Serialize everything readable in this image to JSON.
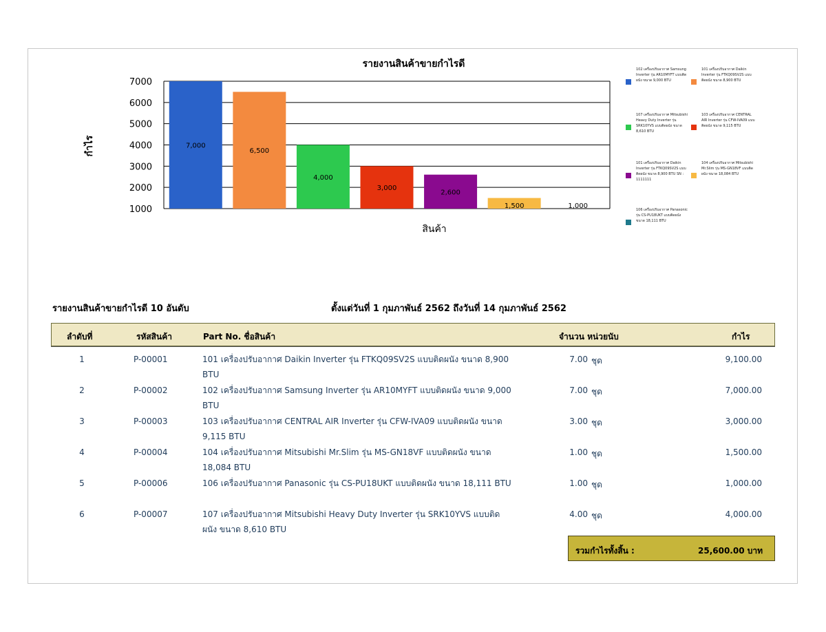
{
  "chart_data": {
    "type": "bar",
    "title": "รายงานสินค้าขายกำไรดี",
    "xlabel": "สินค้า",
    "ylabel": "กำไร",
    "ylim": [
      1000,
      7000
    ],
    "yticks": [
      "7000",
      "6000",
      "5000",
      "4000",
      "3000",
      "2000",
      "1000"
    ],
    "grid": true,
    "legend_position": "right",
    "series": [
      {
        "name": "102 เครื่องปรับอากาศ Samsung Inverter รุ่น AR10MYFT แบบติดผนัง ขนาด 9,000 BTU",
        "value": 7000,
        "label": "7,000",
        "color": "#2a62c9"
      },
      {
        "name": "101 เครื่องปรับอากาศ Daikin Inverter รุ่น FTKQ09SV2S แบบติดผนัง ขนาด 8,900 BTU",
        "value": 6500,
        "label": "6,500",
        "color": "#f38a3f"
      },
      {
        "name": "107 เครื่องปรับอากาศ Mitsubishi Heavy Duty Inverter รุ่น SRK10YVS แบบติดผนัง ขนาด 8,610 BTU",
        "value": 4000,
        "label": "4,000",
        "color": "#2dc94f"
      },
      {
        "name": "103 เครื่องปรับอากาศ CENTRAL AIR Inverter รุ่น CFW-IVA09 แบบติดผนัง ขนาด 9,115 BTU",
        "value": 3000,
        "label": "3,000",
        "color": "#e5330e"
      },
      {
        "name": "101 เครื่องปรับอากาศ Daikin Inverter รุ่น FTKQ09SV2S แบบติดผนัง ขนาด 8,900 BTU SN : 1111111",
        "value": 2600,
        "label": "2,600",
        "color": "#8a0a8f"
      },
      {
        "name": "104 เครื่องปรับอากาศ Mitsubishi Mr.Slim รุ่น MS-GN18VF แบบติดผนัง ขนาด 18,084 BTU",
        "value": 1500,
        "label": "1,500",
        "color": "#f7b943"
      },
      {
        "name": "106 เครื่องปรับอากาศ Panasonic รุ่น CS-PU18UKT แบบติดผนัง ขนาด 18,111 BTU",
        "value": 1000,
        "label": "1,000",
        "color": "#1f7a8c"
      }
    ]
  },
  "report": {
    "title": "รายงานสินค้าขายกำไรดี  10  อันดับ",
    "date_range": "ตั้งแต่วันที่ 1 กุมภาพันธ์ 2562  ถึงวันที่ 14 กุมภาพันธ์ 2562"
  },
  "table": {
    "headers": {
      "no": "ลำดับที่",
      "code": "รหัสสินค้า",
      "name": "Part No.  ชื่อสินค้า",
      "qty_unit": "จำนวน  หน่วยนับ",
      "profit": "กำไร"
    },
    "rows": [
      {
        "no": "1",
        "code": "P-00001",
        "name": "101 เครื่องปรับอากาศ Daikin Inverter รุ่น FTKQ09SV2S แบบติดผนัง ขนาด 8,900 BTU",
        "qty": "7.00",
        "unit": "ชุด",
        "profit": "9,100.00"
      },
      {
        "no": "2",
        "code": "P-00002",
        "name": "102 เครื่องปรับอากาศ Samsung  Inverter รุ่น AR10MYFT แบบติดผนัง ขนาด 9,000 BTU",
        "qty": "7.00",
        "unit": "ชุด",
        "profit": "7,000.00"
      },
      {
        "no": "3",
        "code": "P-00003",
        "name": "103 เครื่องปรับอากาศ CENTRAL AIR  Inverter รุ่น CFW-IVA09 แบบติดผนัง ขนาด 9,115 BTU",
        "qty": "3.00",
        "unit": "ชุด",
        "profit": "3,000.00"
      },
      {
        "no": "4",
        "code": "P-00004",
        "name": "104 เครื่องปรับอากาศ Mitsubishi Mr.Slim รุ่น MS-GN18VF แบบติดผนัง ขนาด 18,084 BTU",
        "qty": "1.00",
        "unit": "ชุด",
        "profit": "1,500.00"
      },
      {
        "no": "5",
        "code": "P-00006",
        "name": "106 เครื่องปรับอากาศ Panasonic รุ่น CS-PU18UKT แบบติดผนัง ขนาด 18,111 BTU",
        "qty": "1.00",
        "unit": "ชุด",
        "profit": "1,000.00"
      },
      {
        "no": "6",
        "code": "P-00007",
        "name": "107 เครื่องปรับอากาศ Mitsubishi Heavy Duty  Inverter รุ่น SRK10YVS แบบติดผนัง ขนาด 8,610 BTU",
        "qty": "4.00",
        "unit": "ชุด",
        "profit": "4,000.00"
      }
    ]
  },
  "total": {
    "label": "รวมกำไรทั้งสิ้น :",
    "value": "25,600.00 บาท"
  }
}
